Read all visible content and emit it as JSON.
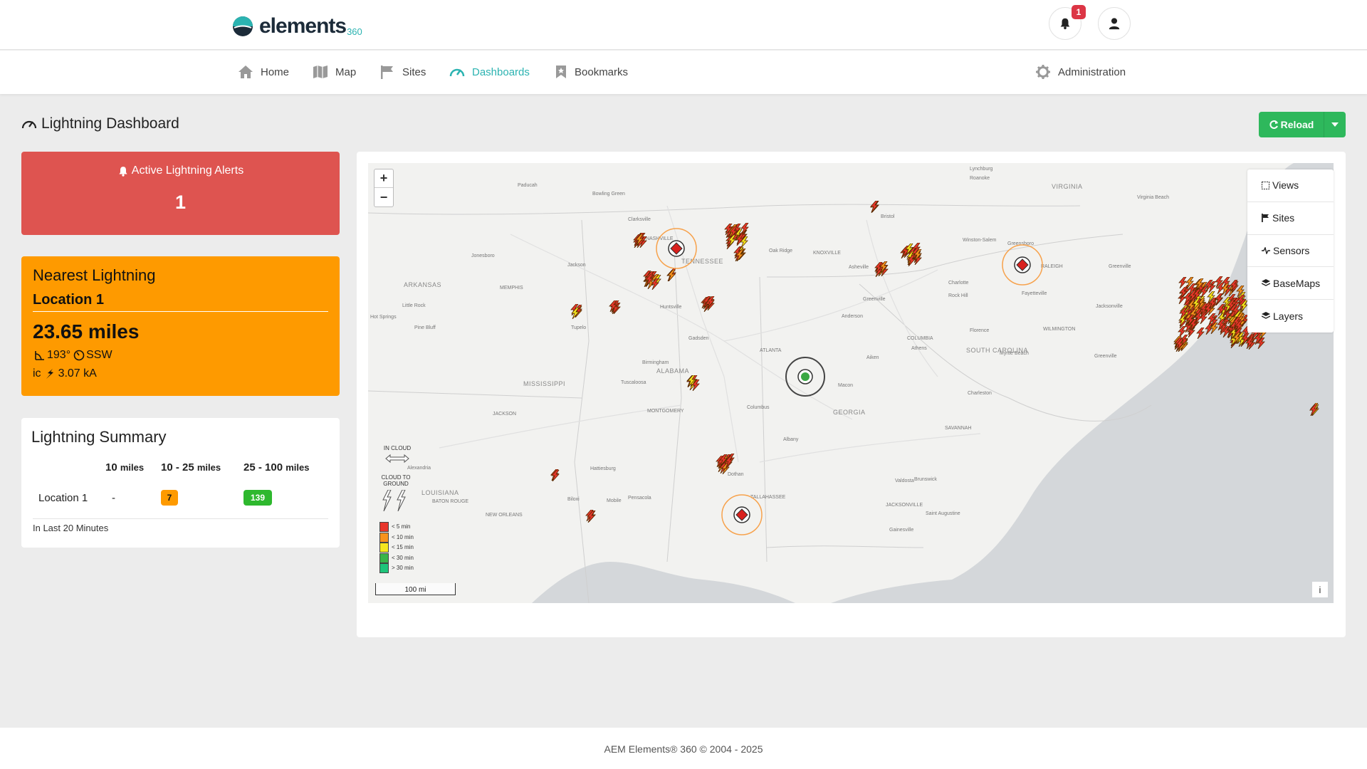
{
  "brand": {
    "name": "elements",
    "suffix": "360"
  },
  "header": {
    "notification_count": "1"
  },
  "nav": {
    "home": "Home",
    "map": "Map",
    "sites": "Sites",
    "dashboards": "Dashboards",
    "bookmarks": "Bookmarks",
    "administration": "Administration"
  },
  "page": {
    "title": "Lightning Dashboard",
    "reload_label": "Reload"
  },
  "alerts": {
    "title": "Active Lightning Alerts",
    "count": "1"
  },
  "nearest": {
    "title": "Nearest Lightning",
    "location": "Location 1",
    "distance": "23.65 miles",
    "bearing": "193°",
    "direction": "SSW",
    "type": "ic",
    "current": "3.07 kA"
  },
  "summary": {
    "title": "Lightning Summary",
    "col1": "10",
    "col1_unit": "miles",
    "col2": "10 - 25",
    "col2_unit": "miles",
    "col3": "25 - 100",
    "col3_unit": "miles",
    "row_location": "Location 1",
    "row_c1": "-",
    "row_c2": "7",
    "row_c3": "139",
    "footer": "In Last 20 Minutes"
  },
  "map": {
    "zoom_in": "+",
    "zoom_out": "−",
    "menu": {
      "views": "Views",
      "sites": "Sites",
      "sensors": "Sensors",
      "basemaps": "BaseMaps",
      "layers": "Layers"
    },
    "legend": {
      "in_cloud": "IN CLOUD",
      "cloud_to_ground": "CLOUD TO GROUND",
      "bands": [
        "< 5 min",
        "< 10 min",
        "< 15 min",
        "< 30 min",
        "> 30 min"
      ],
      "band_colors": [
        "#e8352b",
        "#f7931e",
        "#f5e61e",
        "#39b54a",
        "#1ec47a"
      ]
    },
    "scale": "100 mi",
    "info": "i",
    "labels": [
      {
        "t": "Paducah",
        "c": "city"
      },
      {
        "t": "Bowling Green",
        "c": "city"
      },
      {
        "t": "Lynchburg",
        "c": "city"
      },
      {
        "t": "Roanoke",
        "c": "city"
      },
      {
        "t": "VIRGINIA",
        "c": "state"
      },
      {
        "t": "Virginia Beach",
        "c": "city"
      },
      {
        "t": "Clarksville",
        "c": "city"
      },
      {
        "t": "NASHVILLE",
        "c": "city"
      },
      {
        "t": "Bristol",
        "c": "city"
      },
      {
        "t": "Oak Ridge",
        "c": "city"
      },
      {
        "t": "KNOXVILLE",
        "c": "city"
      },
      {
        "t": "TENNESSEE",
        "c": "state"
      },
      {
        "t": "Winston-Salem",
        "c": "city"
      },
      {
        "t": "Greensboro",
        "c": "city"
      },
      {
        "t": "Jonesboro",
        "c": "city"
      },
      {
        "t": "Jackson",
        "c": "city"
      },
      {
        "t": "Asheville",
        "c": "city"
      },
      {
        "t": "RALEIGH",
        "c": "city"
      },
      {
        "t": "Greenville",
        "c": "city"
      },
      {
        "t": "ARKANSAS",
        "c": "state"
      },
      {
        "t": "MEMPHIS",
        "c": "city"
      },
      {
        "t": "Charlotte",
        "c": "city"
      },
      {
        "t": "Fayetteville",
        "c": "city"
      },
      {
        "t": "Little Rock",
        "c": "city"
      },
      {
        "t": "Huntsville",
        "c": "city"
      },
      {
        "t": "Greenville",
        "c": "city"
      },
      {
        "t": "Rock Hill",
        "c": "city"
      },
      {
        "t": "Jacksonville",
        "c": "city"
      },
      {
        "t": "Hot Springs",
        "c": "city"
      },
      {
        "t": "Anderson",
        "c": "city"
      },
      {
        "t": "Pine Bluff",
        "c": "city"
      },
      {
        "t": "Tupelo",
        "c": "city"
      },
      {
        "t": "Gadsden",
        "c": "city"
      },
      {
        "t": "Florence",
        "c": "city"
      },
      {
        "t": "WILMINGTON",
        "c": "city"
      },
      {
        "t": "COLUMBIA",
        "c": "city"
      },
      {
        "t": "ATLANTA",
        "c": "city"
      },
      {
        "t": "SOUTH CAROLINA",
        "c": "state"
      },
      {
        "t": "Athens",
        "c": "city"
      },
      {
        "t": "Aiken",
        "c": "city"
      },
      {
        "t": "Myrtle Beach",
        "c": "city"
      },
      {
        "t": "Birmingham",
        "c": "city"
      },
      {
        "t": "Greenville",
        "c": "city"
      },
      {
        "t": "ALABAMA",
        "c": "state"
      },
      {
        "t": "Tuscaloosa",
        "c": "city"
      },
      {
        "t": "MISSISSIPPI",
        "c": "state"
      },
      {
        "t": "Macon",
        "c": "city"
      },
      {
        "t": "Charleston",
        "c": "city"
      },
      {
        "t": "MONTGOMERY",
        "c": "city"
      },
      {
        "t": "Columbus",
        "c": "city"
      },
      {
        "t": "GEORGIA",
        "c": "state"
      },
      {
        "t": "JACKSON",
        "c": "city"
      },
      {
        "t": "SAVANNAH",
        "c": "city"
      },
      {
        "t": "Albany",
        "c": "city"
      },
      {
        "t": "Hattiesburg",
        "c": "city"
      },
      {
        "t": "Alexandria",
        "c": "city"
      },
      {
        "t": "Dothan",
        "c": "city"
      },
      {
        "t": "Brunswick",
        "c": "city"
      },
      {
        "t": "LOUISIANA",
        "c": "state"
      },
      {
        "t": "Valdosta",
        "c": "city"
      },
      {
        "t": "BATON ROUGE",
        "c": "city"
      },
      {
        "t": "Mobile",
        "c": "city"
      },
      {
        "t": "TALLAHASSEE",
        "c": "city"
      },
      {
        "t": "Biloxi",
        "c": "city"
      },
      {
        "t": "Pensacola",
        "c": "city"
      },
      {
        "t": "JACKSONVILLE",
        "c": "city"
      },
      {
        "t": "NEW ORLEANS",
        "c": "city"
      },
      {
        "t": "Saint Augustine",
        "c": "city"
      },
      {
        "t": "Gainesville",
        "c": "city"
      }
    ]
  },
  "footer": "AEM Elements® 360 © 2004 - 2025"
}
